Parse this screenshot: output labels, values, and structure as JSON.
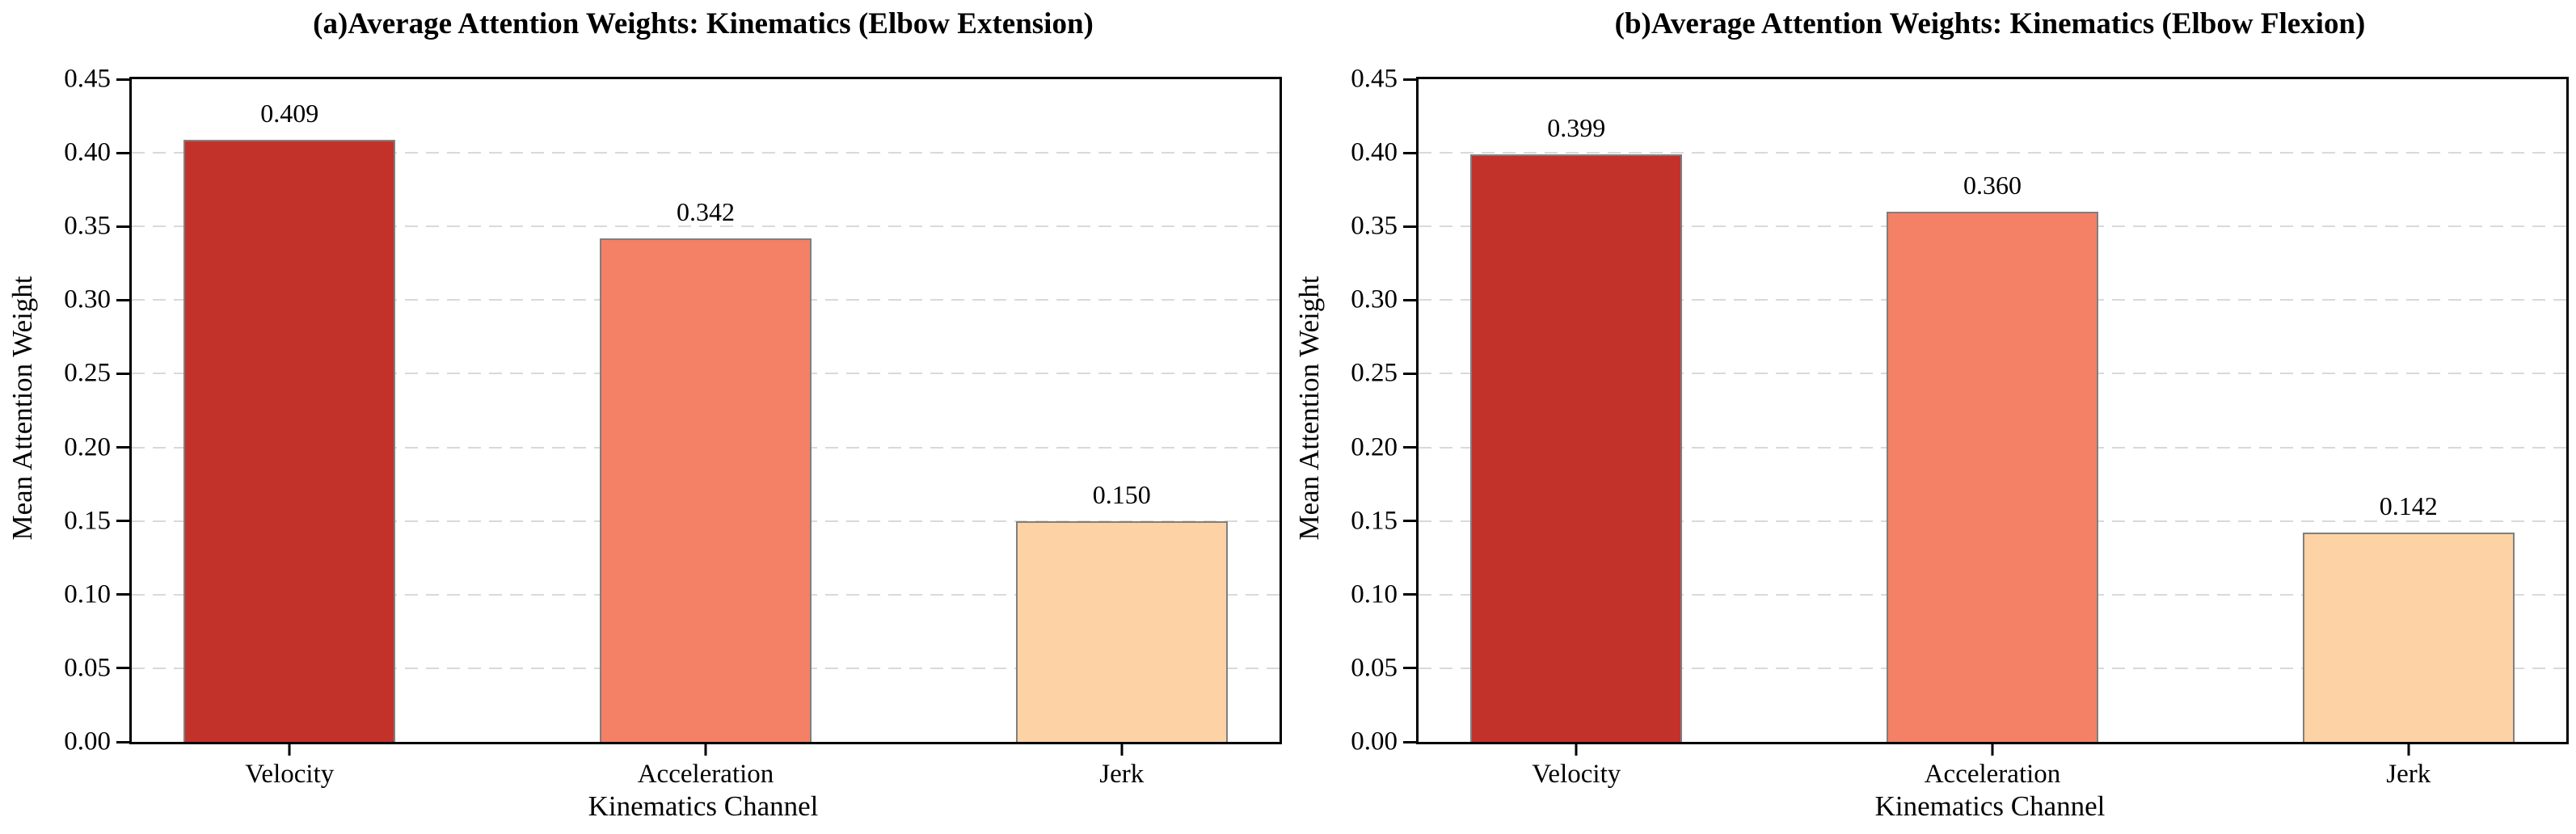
{
  "figure": {
    "background": "#ffffff",
    "grid_color": "#d9d9d9",
    "spine_color": "#000000",
    "bar_edge_color": "#7f7f7f"
  },
  "chart_data": [
    {
      "type": "bar",
      "title": "(a)Average Attention Weights: Kinematics (Elbow Extension)",
      "categories": [
        "Velocity",
        "Acceleration",
        "Jerk"
      ],
      "values": [
        0.409,
        0.342,
        0.15
      ],
      "value_labels": [
        "0.409",
        "0.342",
        "0.150"
      ],
      "bar_colors": [
        "#c3312b",
        "#f48066",
        "#fdd2a5"
      ],
      "xlabel": "Kinematics Channel",
      "ylabel": "Mean Attention Weight",
      "ylim": [
        0,
        0.45
      ],
      "ytick_step": 0.05,
      "ytick_labels": [
        "0.00",
        "0.05",
        "0.10",
        "0.15",
        "0.20",
        "0.25",
        "0.30",
        "0.35",
        "0.40",
        "0.45"
      ],
      "grid": "horizontal-dashed",
      "legend": "none"
    },
    {
      "type": "bar",
      "title": "(b)Average Attention Weights: Kinematics (Elbow Flexion)",
      "categories": [
        "Velocity",
        "Acceleration",
        "Jerk"
      ],
      "values": [
        0.399,
        0.36,
        0.142
      ],
      "value_labels": [
        "0.399",
        "0.360",
        "0.142"
      ],
      "bar_colors": [
        "#c3312b",
        "#f48066",
        "#fdd2a5"
      ],
      "xlabel": "Kinematics Channel",
      "ylabel": "Mean Attention Weight",
      "ylim": [
        0,
        0.45
      ],
      "ytick_step": 0.05,
      "ytick_labels": [
        "0.00",
        "0.05",
        "0.10",
        "0.15",
        "0.20",
        "0.25",
        "0.30",
        "0.35",
        "0.40",
        "0.45"
      ],
      "grid": "horizontal-dashed",
      "legend": "none"
    }
  ]
}
